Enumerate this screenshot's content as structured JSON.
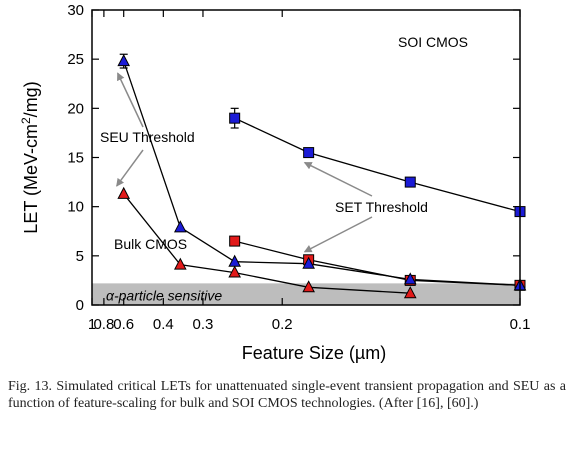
{
  "chart_data": {
    "type": "scatter",
    "xlabel": "Feature Size (µm)",
    "ylabel": "LET (MeV-cm²/mg)",
    "ylabel_prefix": "LET (MeV-cm",
    "ylabel_sup": "2",
    "ylabel_suffix": "/mg)",
    "x_scale": "reciprocal",
    "xlim": [
      1.0,
      0.1
    ],
    "ylim": [
      0,
      30
    ],
    "x_ticks": [
      {
        "value": 1.0,
        "label": "1"
      },
      {
        "value": 0.8,
        "label": "0.8"
      },
      {
        "value": 0.6,
        "label": "0.6"
      },
      {
        "value": 0.4,
        "label": "0.4"
      },
      {
        "value": 0.3,
        "label": "0.3"
      },
      {
        "value": 0.2,
        "label": "0.2"
      },
      {
        "value": 0.1,
        "label": "0.1"
      }
    ],
    "y_ticks": [
      0,
      5,
      10,
      15,
      20,
      25,
      30
    ],
    "band": {
      "y": [
        0,
        2.2
      ],
      "label": "α-particle sensitive",
      "color": "#bdbdbd"
    },
    "series": [
      {
        "marker": "square",
        "color": "#e21a1a",
        "points": [
          {
            "x": 0.25,
            "y": 6.5
          },
          {
            "x": 0.18,
            "y": 4.6
          },
          {
            "x": 0.13,
            "y": 2.5
          },
          {
            "x": 0.1,
            "y": 2.0
          }
        ]
      },
      {
        "marker": "triangle",
        "color": "#e21a1a",
        "points": [
          {
            "x": 0.6,
            "y": 11.3
          },
          {
            "x": 0.35,
            "y": 4.1
          },
          {
            "x": 0.25,
            "y": 3.3
          },
          {
            "x": 0.18,
            "y": 1.8
          },
          {
            "x": 0.13,
            "y": 1.2
          }
        ]
      },
      {
        "marker": "square",
        "color": "#1b1bd6",
        "points": [
          {
            "x": 0.25,
            "y": 19.0,
            "err": 1.0
          },
          {
            "x": 0.18,
            "y": 15.5
          },
          {
            "x": 0.13,
            "y": 12.5
          },
          {
            "x": 0.1,
            "y": 9.5
          }
        ]
      },
      {
        "marker": "triangle",
        "color": "#1b1bd6",
        "points": [
          {
            "x": 0.6,
            "y": 24.8,
            "err": 0.7
          },
          {
            "x": 0.35,
            "y": 7.9
          },
          {
            "x": 0.25,
            "y": 4.4
          },
          {
            "x": 0.18,
            "y": 4.2
          },
          {
            "x": 0.13,
            "y": 2.6
          },
          {
            "x": 0.1,
            "y": 2.0
          }
        ]
      }
    ],
    "annotations": {
      "soi": {
        "text": "SOI CMOS",
        "color": "#1b1bd6"
      },
      "bulk": {
        "text": "Bulk CMOS",
        "color": "#e21a1a"
      },
      "seu": {
        "text": "SEU Threshold"
      },
      "set": {
        "text": "SET Threshold"
      }
    }
  },
  "caption": "Fig. 13.   Simulated critical LETs for unattenuated single-event transient propagation and SEU as a function of feature-scaling for bulk and SOI CMOS technologies. (After [16], [60].)"
}
